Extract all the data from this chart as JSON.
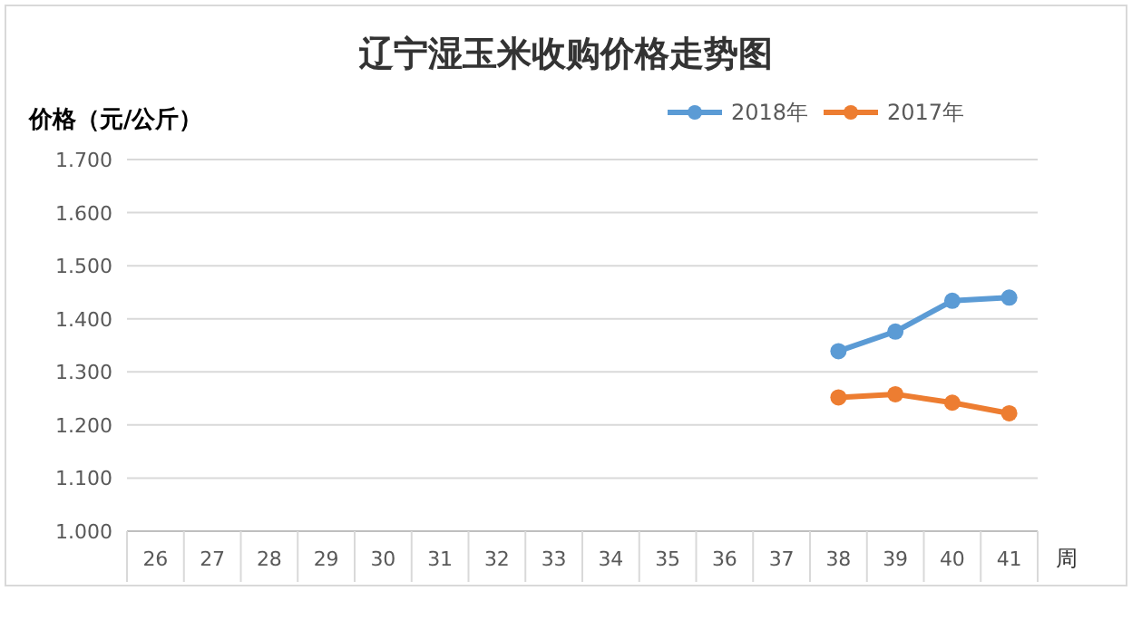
{
  "chart_data": {
    "type": "line",
    "title": "辽宁湿玉米收购价格走势图",
    "ylabel": "价格（元/公斤）",
    "xlabel": "周",
    "categories": [
      "26",
      "27",
      "28",
      "29",
      "30",
      "31",
      "32",
      "33",
      "34",
      "35",
      "36",
      "37",
      "38",
      "39",
      "40",
      "41"
    ],
    "series": [
      {
        "name": "2018年",
        "color": "#5b9bd5",
        "values": [
          null,
          null,
          null,
          null,
          null,
          null,
          null,
          null,
          null,
          null,
          null,
          null,
          1.339,
          1.376,
          1.434,
          1.44
        ]
      },
      {
        "name": "2017年",
        "color": "#ed7d31",
        "values": [
          null,
          null,
          null,
          null,
          null,
          null,
          null,
          null,
          null,
          null,
          null,
          null,
          1.252,
          1.258,
          1.242,
          1.222
        ]
      }
    ],
    "ylim": [
      1.0,
      1.7
    ],
    "yticks": [
      {
        "value": 1.0,
        "label": "1.000"
      },
      {
        "value": 1.1,
        "label": "1.100"
      },
      {
        "value": 1.2,
        "label": "1.200"
      },
      {
        "value": 1.3,
        "label": "1.300"
      },
      {
        "value": 1.4,
        "label": "1.400"
      },
      {
        "value": 1.5,
        "label": "1.500"
      },
      {
        "value": 1.6,
        "label": "1.600"
      },
      {
        "value": 1.7,
        "label": "1.700"
      }
    ],
    "grid": "y",
    "legend": "top right",
    "marker": "circle",
    "line_style": "solid"
  }
}
